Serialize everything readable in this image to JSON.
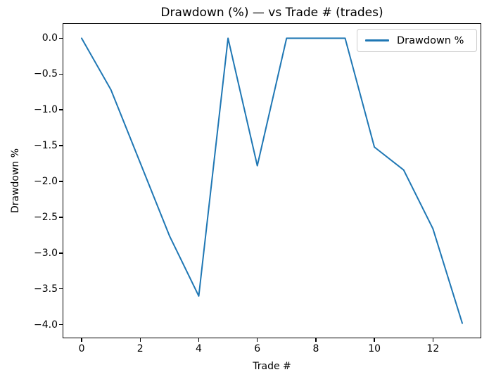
{
  "chart_data": {
    "type": "line",
    "title": "Drawdown (%) — vs Trade # (trades)",
    "xlabel": "Trade #",
    "ylabel": "Drawdown %",
    "x": [
      0,
      1,
      2,
      3,
      4,
      5,
      6,
      7,
      8,
      9,
      10,
      11,
      12,
      13
    ],
    "series": [
      {
        "name": "Drawdown %",
        "color": "#1f77b4",
        "values": [
          0.0,
          -0.72,
          -1.74,
          -2.76,
          -3.6,
          0.0,
          -1.78,
          0.0,
          0.0,
          0.0,
          -1.52,
          -1.84,
          -2.66,
          -3.98
        ]
      }
    ],
    "xticks": [
      0,
      2,
      4,
      6,
      8,
      10,
      12
    ],
    "yticks": [
      0.0,
      -0.5,
      -1.0,
      -1.5,
      -2.0,
      -2.5,
      -3.0,
      -3.5,
      -4.0
    ],
    "xlim": [
      -0.65,
      13.65
    ],
    "ylim": [
      -4.19,
      0.21
    ],
    "grid": false,
    "legend": {
      "position": "upper right",
      "entries": [
        {
          "label": "Drawdown %",
          "color": "#1f77b4"
        }
      ]
    },
    "colors": {
      "line": "#1f77b4",
      "spine": "#000000",
      "text": "#000000",
      "legend_border": "#cccccc",
      "background": "#ffffff"
    }
  }
}
